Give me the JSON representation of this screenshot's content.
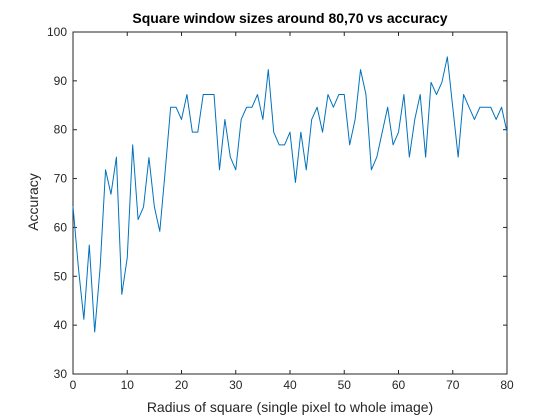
{
  "chart_data": {
    "type": "line",
    "title": "Square window sizes around 80,70 vs accuracy",
    "xlabel": "Radius of square (single pixel to whole image)",
    "ylabel": "Accuracy",
    "xlim": [
      0,
      80
    ],
    "ylim": [
      30,
      100
    ],
    "xticks": [
      0,
      10,
      20,
      30,
      40,
      50,
      60,
      70,
      80
    ],
    "yticks": [
      30,
      40,
      50,
      60,
      70,
      80,
      90,
      100
    ],
    "xtick_labels": [
      "0",
      "10",
      "20",
      "30",
      "40",
      "50",
      "60",
      "70",
      "80"
    ],
    "ytick_labels": [
      "30",
      "40",
      "50",
      "60",
      "70",
      "80",
      "90",
      "100"
    ],
    "grid": false,
    "legend": "none",
    "colors": {
      "line": "#0072BD",
      "axis": "#262626",
      "background": "#ffffff"
    },
    "series": [
      {
        "x": [
          0,
          1,
          2,
          3,
          4,
          5,
          6,
          7,
          8,
          9,
          10,
          11,
          12,
          13,
          14,
          15,
          16,
          17,
          18,
          19,
          20,
          21,
          22,
          23,
          24,
          25,
          26,
          27,
          28,
          29,
          30,
          31,
          32,
          33,
          34,
          35,
          36,
          37,
          38,
          39,
          40,
          41,
          42,
          43,
          44,
          45,
          46,
          47,
          48,
          49,
          50,
          51,
          52,
          53,
          54,
          55,
          56,
          57,
          58,
          59,
          60,
          61,
          62,
          63,
          64,
          65,
          66,
          67,
          68,
          69,
          70,
          71,
          72,
          73,
          74,
          75,
          76,
          77,
          78,
          79,
          80
        ],
        "values": [
          64.3,
          51.7,
          41.2,
          56.4,
          38.6,
          51.8,
          71.8,
          66.8,
          74.4,
          46.3,
          53.8,
          76.9,
          61.6,
          64.2,
          74.3,
          64.2,
          59.2,
          71.6,
          84.6,
          84.6,
          82.1,
          87.2,
          79.5,
          79.5,
          87.2,
          87.2,
          87.2,
          71.8,
          82.1,
          74.4,
          71.8,
          82.1,
          84.6,
          84.6,
          87.2,
          82.1,
          92.3,
          79.5,
          76.9,
          76.9,
          79.5,
          69.2,
          79.5,
          71.8,
          82.1,
          84.6,
          79.5,
          87.2,
          84.6,
          87.2,
          87.2,
          76.9,
          82.1,
          92.3,
          87.2,
          71.8,
          74.4,
          79.5,
          84.6,
          76.9,
          79.5,
          87.2,
          74.4,
          82.1,
          87.2,
          74.4,
          89.7,
          87.2,
          89.7,
          94.9,
          84.6,
          74.4,
          87.2,
          84.6,
          82.1,
          84.6,
          84.6,
          84.6,
          82.1,
          84.6,
          79.5
        ]
      }
    ]
  }
}
